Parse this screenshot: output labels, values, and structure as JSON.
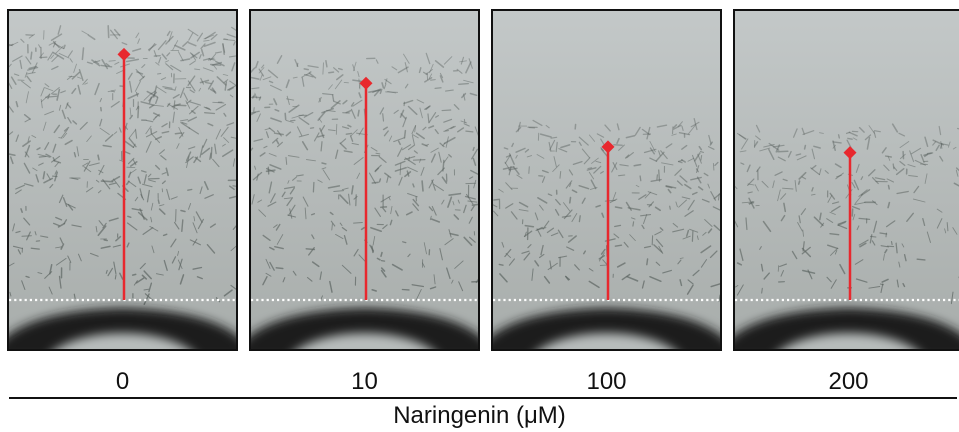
{
  "panels": [
    {
      "dose": "0",
      "migration": 0.85,
      "density": 1.0
    },
    {
      "dose": "10",
      "migration": 0.75,
      "density": 0.8
    },
    {
      "dose": "100",
      "migration": 0.53,
      "density": 0.55
    },
    {
      "dose": "200",
      "migration": 0.51,
      "density": 0.45
    }
  ],
  "x_axis_title": "Naringenin (μM)",
  "colors": {
    "migration_line": "#e8282e",
    "baseline": "#ffffff",
    "background": "#b8bdbd",
    "scratch": "#1a1a1a",
    "cells": "#5a625f"
  }
}
